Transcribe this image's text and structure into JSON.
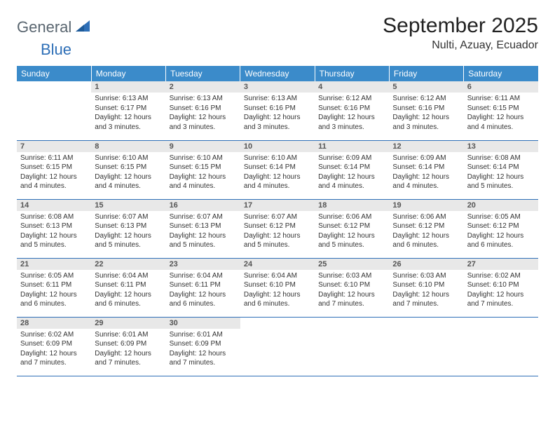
{
  "logo": {
    "word1": "General",
    "word2": "Blue"
  },
  "title": "September 2025",
  "location": "Nulti, Azuay, Ecuador",
  "colors": {
    "header_bg": "#3b8bca",
    "header_text": "#ffffff",
    "border": "#2e6fb7",
    "daynum_bg": "#e8e8e8",
    "daynum_text": "#555555",
    "body_text": "#333333",
    "logo_gray": "#5a6670",
    "logo_blue": "#2e6fb7"
  },
  "typography": {
    "title_fontsize": 30,
    "location_fontsize": 16,
    "header_fontsize": 12,
    "daynum_fontsize": 11,
    "body_fontsize": 10
  },
  "day_headers": [
    "Sunday",
    "Monday",
    "Tuesday",
    "Wednesday",
    "Thursday",
    "Friday",
    "Saturday"
  ],
  "weeks": [
    [
      null,
      {
        "n": "1",
        "sr": "Sunrise: 6:13 AM",
        "ss": "Sunset: 6:17 PM",
        "dl": "Daylight: 12 hours and 3 minutes."
      },
      {
        "n": "2",
        "sr": "Sunrise: 6:13 AM",
        "ss": "Sunset: 6:16 PM",
        "dl": "Daylight: 12 hours and 3 minutes."
      },
      {
        "n": "3",
        "sr": "Sunrise: 6:13 AM",
        "ss": "Sunset: 6:16 PM",
        "dl": "Daylight: 12 hours and 3 minutes."
      },
      {
        "n": "4",
        "sr": "Sunrise: 6:12 AM",
        "ss": "Sunset: 6:16 PM",
        "dl": "Daylight: 12 hours and 3 minutes."
      },
      {
        "n": "5",
        "sr": "Sunrise: 6:12 AM",
        "ss": "Sunset: 6:16 PM",
        "dl": "Daylight: 12 hours and 3 minutes."
      },
      {
        "n": "6",
        "sr": "Sunrise: 6:11 AM",
        "ss": "Sunset: 6:15 PM",
        "dl": "Daylight: 12 hours and 4 minutes."
      }
    ],
    [
      {
        "n": "7",
        "sr": "Sunrise: 6:11 AM",
        "ss": "Sunset: 6:15 PM",
        "dl": "Daylight: 12 hours and 4 minutes."
      },
      {
        "n": "8",
        "sr": "Sunrise: 6:10 AM",
        "ss": "Sunset: 6:15 PM",
        "dl": "Daylight: 12 hours and 4 minutes."
      },
      {
        "n": "9",
        "sr": "Sunrise: 6:10 AM",
        "ss": "Sunset: 6:15 PM",
        "dl": "Daylight: 12 hours and 4 minutes."
      },
      {
        "n": "10",
        "sr": "Sunrise: 6:10 AM",
        "ss": "Sunset: 6:14 PM",
        "dl": "Daylight: 12 hours and 4 minutes."
      },
      {
        "n": "11",
        "sr": "Sunrise: 6:09 AM",
        "ss": "Sunset: 6:14 PM",
        "dl": "Daylight: 12 hours and 4 minutes."
      },
      {
        "n": "12",
        "sr": "Sunrise: 6:09 AM",
        "ss": "Sunset: 6:14 PM",
        "dl": "Daylight: 12 hours and 4 minutes."
      },
      {
        "n": "13",
        "sr": "Sunrise: 6:08 AM",
        "ss": "Sunset: 6:14 PM",
        "dl": "Daylight: 12 hours and 5 minutes."
      }
    ],
    [
      {
        "n": "14",
        "sr": "Sunrise: 6:08 AM",
        "ss": "Sunset: 6:13 PM",
        "dl": "Daylight: 12 hours and 5 minutes."
      },
      {
        "n": "15",
        "sr": "Sunrise: 6:07 AM",
        "ss": "Sunset: 6:13 PM",
        "dl": "Daylight: 12 hours and 5 minutes."
      },
      {
        "n": "16",
        "sr": "Sunrise: 6:07 AM",
        "ss": "Sunset: 6:13 PM",
        "dl": "Daylight: 12 hours and 5 minutes."
      },
      {
        "n": "17",
        "sr": "Sunrise: 6:07 AM",
        "ss": "Sunset: 6:12 PM",
        "dl": "Daylight: 12 hours and 5 minutes."
      },
      {
        "n": "18",
        "sr": "Sunrise: 6:06 AM",
        "ss": "Sunset: 6:12 PM",
        "dl": "Daylight: 12 hours and 5 minutes."
      },
      {
        "n": "19",
        "sr": "Sunrise: 6:06 AM",
        "ss": "Sunset: 6:12 PM",
        "dl": "Daylight: 12 hours and 6 minutes."
      },
      {
        "n": "20",
        "sr": "Sunrise: 6:05 AM",
        "ss": "Sunset: 6:12 PM",
        "dl": "Daylight: 12 hours and 6 minutes."
      }
    ],
    [
      {
        "n": "21",
        "sr": "Sunrise: 6:05 AM",
        "ss": "Sunset: 6:11 PM",
        "dl": "Daylight: 12 hours and 6 minutes."
      },
      {
        "n": "22",
        "sr": "Sunrise: 6:04 AM",
        "ss": "Sunset: 6:11 PM",
        "dl": "Daylight: 12 hours and 6 minutes."
      },
      {
        "n": "23",
        "sr": "Sunrise: 6:04 AM",
        "ss": "Sunset: 6:11 PM",
        "dl": "Daylight: 12 hours and 6 minutes."
      },
      {
        "n": "24",
        "sr": "Sunrise: 6:04 AM",
        "ss": "Sunset: 6:10 PM",
        "dl": "Daylight: 12 hours and 6 minutes."
      },
      {
        "n": "25",
        "sr": "Sunrise: 6:03 AM",
        "ss": "Sunset: 6:10 PM",
        "dl": "Daylight: 12 hours and 7 minutes."
      },
      {
        "n": "26",
        "sr": "Sunrise: 6:03 AM",
        "ss": "Sunset: 6:10 PM",
        "dl": "Daylight: 12 hours and 7 minutes."
      },
      {
        "n": "27",
        "sr": "Sunrise: 6:02 AM",
        "ss": "Sunset: 6:10 PM",
        "dl": "Daylight: 12 hours and 7 minutes."
      }
    ],
    [
      {
        "n": "28",
        "sr": "Sunrise: 6:02 AM",
        "ss": "Sunset: 6:09 PM",
        "dl": "Daylight: 12 hours and 7 minutes."
      },
      {
        "n": "29",
        "sr": "Sunrise: 6:01 AM",
        "ss": "Sunset: 6:09 PM",
        "dl": "Daylight: 12 hours and 7 minutes."
      },
      {
        "n": "30",
        "sr": "Sunrise: 6:01 AM",
        "ss": "Sunset: 6:09 PM",
        "dl": "Daylight: 12 hours and 7 minutes."
      },
      null,
      null,
      null,
      null
    ]
  ]
}
